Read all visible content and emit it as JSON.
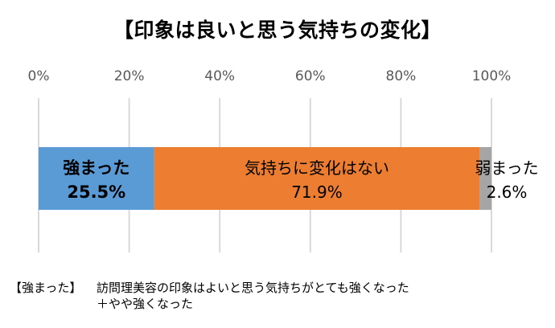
{
  "title": "【印象は良いと思う気持ちの変化】",
  "chart_data": {
    "type": "bar",
    "orientation": "horizontal-stacked-100",
    "title": "【印象は良いと思う気持ちの変化】",
    "xlim": [
      0,
      100
    ],
    "x_ticks": [
      "0%",
      "20%",
      "40%",
      "60%",
      "80%",
      "100%"
    ],
    "grid": true,
    "series": [
      {
        "name": "強まった",
        "value": 25.5,
        "value_label": "25.5%",
        "color": "#5b9bd5",
        "label_color": "#000000",
        "bold": true
      },
      {
        "name": "気持ちに変化はない",
        "value": 71.9,
        "value_label": "71.9%",
        "color": "#ed7d31",
        "label_color": "#000000",
        "bold": false
      },
      {
        "name": "弱まった",
        "value": 2.6,
        "value_label": "2.6%",
        "color": "#a5a5a5",
        "label_color": "#000000",
        "bold": false
      }
    ]
  },
  "note": {
    "tag": "【強まった】",
    "line1": "訪問理美容の印象はよいと思う気持ちがとても強くなった",
    "line2": "＋やや強くなった"
  },
  "colors": {
    "grid": "#d9d9d9",
    "tick_text": "#595959"
  }
}
